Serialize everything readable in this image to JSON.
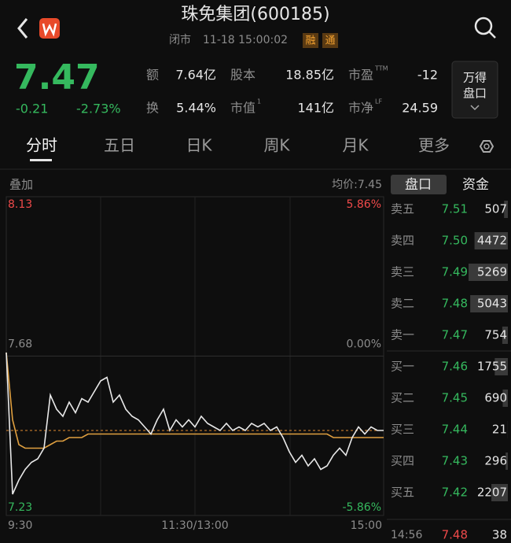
{
  "header": {
    "title": "珠免集团(600185)",
    "status": "闭市",
    "datetime": "11-18 15:00:02",
    "tags": [
      "融",
      "通"
    ]
  },
  "quote": {
    "price": 7.47,
    "change": -0.21,
    "change_pct": "-2.73%",
    "stats": [
      {
        "label": "额",
        "value": "7.64亿"
      },
      {
        "label": "股本",
        "value": "18.85亿"
      },
      {
        "label": "市盈",
        "sup": "TTM",
        "value": "-12"
      },
      {
        "label": "换",
        "value": "5.44%"
      },
      {
        "label": "市值",
        "sup": "1",
        "value": "141亿"
      },
      {
        "label": "市净",
        "sup": "LF",
        "value": "24.59"
      }
    ],
    "button": [
      "万得",
      "盘口"
    ]
  },
  "tabs": [
    "分时",
    "五日",
    "日K",
    "周K",
    "月K",
    "更多"
  ],
  "chart": {
    "overlay": "叠加",
    "avg_label": "均价:7.45",
    "ylim": [
      7.23,
      8.13
    ],
    "yticks": [
      8.13,
      7.68,
      7.23
    ],
    "pct_ticks": [
      "5.86%",
      "0.00%",
      "-5.86%"
    ],
    "xticks": [
      "9:30",
      "11:30/13:00",
      "15:00"
    ],
    "price": [
      7.69,
      7.29,
      7.33,
      7.36,
      7.38,
      7.39,
      7.42,
      7.57,
      7.53,
      7.51,
      7.55,
      7.52,
      7.56,
      7.55,
      7.58,
      7.61,
      7.62,
      7.55,
      7.57,
      7.53,
      7.51,
      7.5,
      7.48,
      7.46,
      7.5,
      7.53,
      7.47,
      7.5,
      7.48,
      7.5,
      7.48,
      7.51,
      7.49,
      7.48,
      7.47,
      7.49,
      7.47,
      7.48,
      7.47,
      7.49,
      7.48,
      7.49,
      7.47,
      7.48,
      7.45,
      7.41,
      7.38,
      7.4,
      7.37,
      7.39,
      7.36,
      7.37,
      7.4,
      7.42,
      7.4,
      7.45,
      7.48,
      7.46,
      7.48,
      7.47,
      7.47
    ],
    "avg": [
      7.69,
      7.5,
      7.43,
      7.42,
      7.42,
      7.42,
      7.42,
      7.43,
      7.44,
      7.44,
      7.45,
      7.45,
      7.45,
      7.46,
      7.46,
      7.46,
      7.46,
      7.46,
      7.46,
      7.46,
      7.46,
      7.46,
      7.46,
      7.46,
      7.46,
      7.46,
      7.46,
      7.46,
      7.46,
      7.46,
      7.46,
      7.46,
      7.46,
      7.46,
      7.46,
      7.46,
      7.46,
      7.46,
      7.46,
      7.46,
      7.46,
      7.46,
      7.46,
      7.46,
      7.46,
      7.46,
      7.46,
      7.46,
      7.46,
      7.46,
      7.46,
      7.46,
      7.45,
      7.45,
      7.45,
      7.45,
      7.45,
      7.45,
      7.45,
      7.45,
      7.45
    ]
  },
  "order_book": {
    "tabs": [
      "盘口",
      "资金"
    ],
    "rows": [
      {
        "label": "卖五",
        "price": "7.51",
        "volume": 507
      },
      {
        "label": "卖四",
        "price": "7.50",
        "volume": 4472
      },
      {
        "label": "卖三",
        "price": "7.49",
        "volume": 5269
      },
      {
        "label": "卖二",
        "price": "7.48",
        "volume": 5043
      },
      {
        "label": "卖一",
        "price": "7.47",
        "volume": 754
      },
      {
        "label": "买一",
        "price": "7.46",
        "volume": 1755
      },
      {
        "label": "买二",
        "price": "7.45",
        "volume": 690
      },
      {
        "label": "买三",
        "price": "7.44",
        "volume": 21
      },
      {
        "label": "买四",
        "price": "7.43",
        "volume": 296
      },
      {
        "label": "买五",
        "price": "7.42",
        "volume": 2207
      }
    ],
    "trade": {
      "time": "14:56",
      "price": "7.48",
      "volume": 38
    }
  }
}
